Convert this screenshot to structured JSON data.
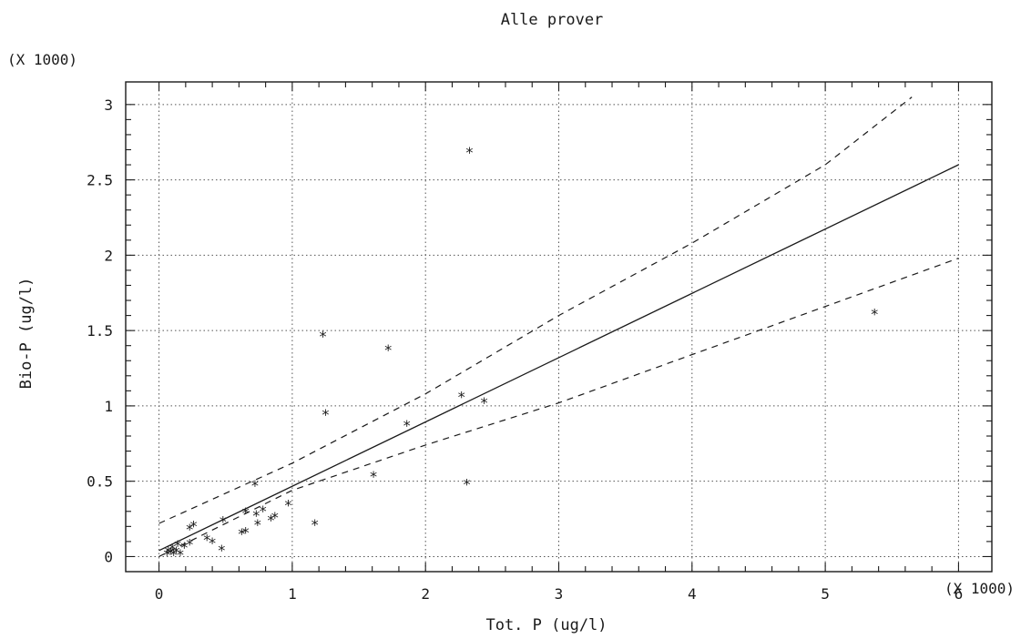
{
  "chart_data": {
    "type": "scatter",
    "title": "Alle prover",
    "xlabel": "Tot. P (ug/l)",
    "ylabel": "Bio-P (ug/l)",
    "x_multiplier_label": "(X 1000)",
    "y_multiplier_label": "(X 1000)",
    "xlim": [
      -0.25,
      6.25
    ],
    "ylim": [
      -0.1,
      3.15
    ],
    "xticks": [
      0,
      1,
      2,
      3,
      4,
      5,
      6
    ],
    "xtick_labels": [
      "0",
      "1",
      "2",
      "3",
      "4",
      "5",
      "6"
    ],
    "yticks": [
      0,
      0.5,
      1,
      1.5,
      2,
      2.5,
      3
    ],
    "ytick_labels": [
      "0",
      "0.5",
      "1",
      "1.5",
      "2",
      "2.5",
      "3"
    ],
    "grid": true,
    "marker": "*",
    "points": [
      {
        "x": 2.33,
        "y": 2.69
      },
      {
        "x": 5.37,
        "y": 1.62
      },
      {
        "x": 1.23,
        "y": 1.47
      },
      {
        "x": 1.72,
        "y": 1.38
      },
      {
        "x": 2.27,
        "y": 1.07
      },
      {
        "x": 2.44,
        "y": 1.03
      },
      {
        "x": 1.25,
        "y": 0.95
      },
      {
        "x": 1.86,
        "y": 0.88
      },
      {
        "x": 1.61,
        "y": 0.54
      },
      {
        "x": 2.31,
        "y": 0.49
      },
      {
        "x": 0.72,
        "y": 0.48
      },
      {
        "x": 0.97,
        "y": 0.35
      },
      {
        "x": 0.78,
        "y": 0.31
      },
      {
        "x": 0.65,
        "y": 0.3
      },
      {
        "x": 0.73,
        "y": 0.28
      },
      {
        "x": 0.87,
        "y": 0.27
      },
      {
        "x": 0.84,
        "y": 0.25
      },
      {
        "x": 0.48,
        "y": 0.24
      },
      {
        "x": 0.74,
        "y": 0.22
      },
      {
        "x": 1.17,
        "y": 0.22
      },
      {
        "x": 0.26,
        "y": 0.21
      },
      {
        "x": 0.23,
        "y": 0.19
      },
      {
        "x": 0.65,
        "y": 0.17
      },
      {
        "x": 0.62,
        "y": 0.16
      },
      {
        "x": 0.36,
        "y": 0.12
      },
      {
        "x": 0.4,
        "y": 0.1
      },
      {
        "x": 0.23,
        "y": 0.09
      },
      {
        "x": 0.14,
        "y": 0.08
      },
      {
        "x": 0.19,
        "y": 0.07
      },
      {
        "x": 0.1,
        "y": 0.06
      },
      {
        "x": 0.47,
        "y": 0.05
      },
      {
        "x": 0.07,
        "y": 0.04
      },
      {
        "x": 0.13,
        "y": 0.04
      },
      {
        "x": 0.09,
        "y": 0.03
      },
      {
        "x": 0.06,
        "y": 0.02
      },
      {
        "x": 0.11,
        "y": 0.02
      },
      {
        "x": 0.16,
        "y": 0.02
      }
    ],
    "series": [
      {
        "style": "solid",
        "x": [
          0,
          6
        ],
        "y": [
          0.04,
          2.6
        ]
      },
      {
        "style": "dashed",
        "x": [
          0,
          1,
          2,
          3,
          4,
          5,
          5.65
        ],
        "y": [
          0.22,
          0.62,
          1.08,
          1.6,
          2.08,
          2.6,
          3.05
        ]
      },
      {
        "style": "dashed",
        "x": [
          0,
          1,
          2,
          3,
          4,
          5,
          6
        ],
        "y": [
          0.0,
          0.44,
          0.74,
          1.02,
          1.34,
          1.66,
          1.98
        ]
      }
    ]
  }
}
